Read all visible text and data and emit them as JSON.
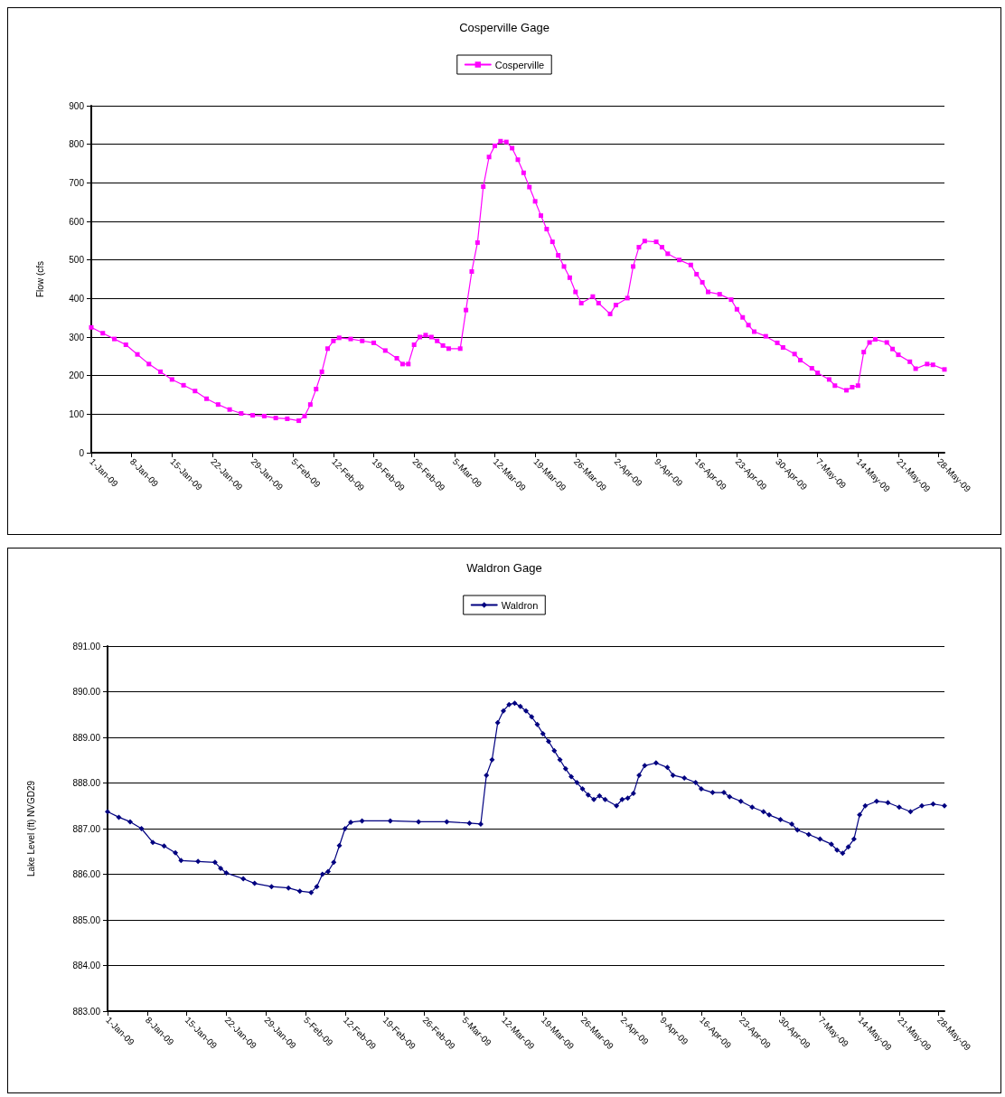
{
  "chart_data": [
    {
      "type": "line",
      "title": "Cosperville Gage",
      "ylabel": "Flow (cfs",
      "legend": "top",
      "grid": "y",
      "marker": "square",
      "line_style": "solid",
      "xlim": [
        "--01-01",
        "--05-29"
      ],
      "ylim": [
        0,
        900
      ],
      "yticks": [
        0,
        100,
        200,
        300,
        400,
        500,
        600,
        700,
        800,
        900
      ],
      "xticks": [
        {
          "value": "--01-01",
          "label": "1-Jan-09"
        },
        {
          "value": "--01-08",
          "label": "8-Jan-09"
        },
        {
          "value": "--01-15",
          "label": "15-Jan-09"
        },
        {
          "value": "--01-22",
          "label": "22-Jan-09"
        },
        {
          "value": "--01-29",
          "label": "29-Jan-09"
        },
        {
          "value": "--02-05",
          "label": "5-Feb-09"
        },
        {
          "value": "--02-12",
          "label": "12-Feb-09"
        },
        {
          "value": "--02-19",
          "label": "19-Feb-09"
        },
        {
          "value": "--02-26",
          "label": "26-Feb-09"
        },
        {
          "value": "--03-05",
          "label": "5-Mar-09"
        },
        {
          "value": "--03-12",
          "label": "12-Mar-09"
        },
        {
          "value": "--03-19",
          "label": "19-Mar-09"
        },
        {
          "value": "--03-26",
          "label": "26-Mar-09"
        },
        {
          "value": "--04-02",
          "label": "2-Apr-09"
        },
        {
          "value": "--04-09",
          "label": "9-Apr-09"
        },
        {
          "value": "--04-16",
          "label": "16-Apr-09"
        },
        {
          "value": "--04-23",
          "label": "23-Apr-09"
        },
        {
          "value": "--04-30",
          "label": "30-Apr-09"
        },
        {
          "value": "--05-07",
          "label": "7-May-09"
        },
        {
          "value": "--05-14",
          "label": "14-May-09"
        },
        {
          "value": "--05-21",
          "label": "21-May-09"
        },
        {
          "value": "--05-28",
          "label": "28-May-09"
        }
      ],
      "x": [
        "--01-01",
        "--01-03",
        "--01-05",
        "--01-07",
        "--01-09",
        "--01-11",
        "--01-13",
        "--01-15",
        "--01-17",
        "--01-19",
        "--01-21",
        "--01-23",
        "--01-25",
        "--01-27",
        "--01-29",
        "--01-31",
        "--02-02",
        "--02-04",
        "--02-06",
        "--02-07",
        "--02-08",
        "--02-09",
        "--02-10",
        "--02-11",
        "--02-12",
        "--02-13",
        "--02-15",
        "--02-17",
        "--02-19",
        "--02-21",
        "--02-23",
        "--02-24",
        "--02-25",
        "--02-26",
        "--02-27",
        "--02-28",
        "--03-01",
        "--03-02",
        "--03-03",
        "--03-04",
        "--03-06",
        "--03-07",
        "--03-08",
        "--03-09",
        "--03-10",
        "--03-11",
        "--03-12",
        "--03-13",
        "--03-14",
        "--03-15",
        "--03-16",
        "--03-17",
        "--03-18",
        "--03-19",
        "--03-20",
        "--03-21",
        "--03-22",
        "--03-23",
        "--03-24",
        "--03-25",
        "--03-26",
        "--03-27",
        "--03-29",
        "--03-30",
        "--04-01",
        "--04-02",
        "--04-04",
        "--04-05",
        "--04-06",
        "--04-07",
        "--04-09",
        "--04-10",
        "--04-11",
        "--04-13",
        "--04-15",
        "--04-16",
        "--04-17",
        "--04-18",
        "--04-20",
        "--04-22",
        "--04-23",
        "--04-24",
        "--04-25",
        "--04-26",
        "--04-28",
        "--04-30",
        "--05-01",
        "--05-03",
        "--05-04",
        "--05-06",
        "--05-07",
        "--05-09",
        "--05-10",
        "--05-12",
        "--05-13",
        "--05-14",
        "--05-15",
        "--05-16",
        "--05-17",
        "--05-19",
        "--05-20",
        "--05-21",
        "--05-23",
        "--05-24",
        "--05-26",
        "--05-27",
        "--05-29"
      ],
      "series": [
        {
          "name": "Cosperville",
          "color": "#ff00ff",
          "values": [
            325,
            310,
            295,
            280,
            255,
            230,
            210,
            190,
            175,
            160,
            140,
            125,
            112,
            102,
            97,
            95,
            90,
            88,
            83,
            95,
            125,
            165,
            210,
            270,
            290,
            298,
            295,
            290,
            285,
            265,
            245,
            230,
            230,
            280,
            300,
            305,
            300,
            290,
            278,
            270,
            270,
            370,
            470,
            545,
            690,
            767,
            796,
            808,
            806,
            790,
            760,
            726,
            689,
            652,
            615,
            580,
            547,
            512,
            483,
            454,
            417,
            388,
            405,
            388,
            360,
            383,
            401,
            483,
            533,
            549,
            547,
            533,
            516,
            500,
            487,
            463,
            442,
            417,
            411,
            397,
            372,
            351,
            331,
            314,
            302,
            285,
            273,
            256,
            240,
            219,
            207,
            190,
            174,
            162,
            170,
            174,
            261,
            286,
            294,
            286,
            269,
            254,
            236,
            218,
            230,
            228,
            216
          ]
        }
      ]
    },
    {
      "type": "line",
      "title": "Waldron Gage",
      "ylabel": "Lake Level (ft) NVGD29",
      "legend": "top",
      "grid": "y",
      "marker": "diamond",
      "line_style": "solid",
      "xlim": [
        "--01-01",
        "--05-29"
      ],
      "ylim": [
        883,
        891
      ],
      "yticks": [
        {
          "value": 883,
          "label": "883.00"
        },
        {
          "value": 884,
          "label": "884.00"
        },
        {
          "value": 885,
          "label": "885.00"
        },
        {
          "value": 886,
          "label": "886.00"
        },
        {
          "value": 887,
          "label": "887.00"
        },
        {
          "value": 888,
          "label": "888.00"
        },
        {
          "value": 889,
          "label": "889.00"
        },
        {
          "value": 890,
          "label": "890.00"
        },
        {
          "value": 891,
          "label": "891.00"
        }
      ],
      "xticks": [
        {
          "value": "--01-01",
          "label": "1-Jan-09"
        },
        {
          "value": "--01-08",
          "label": "8-Jan-09"
        },
        {
          "value": "--01-15",
          "label": "15-Jan-09"
        },
        {
          "value": "--01-22",
          "label": "22-Jan-09"
        },
        {
          "value": "--01-29",
          "label": "29-Jan-09"
        },
        {
          "value": "--02-05",
          "label": "5-Feb-09"
        },
        {
          "value": "--02-12",
          "label": "12-Feb-09"
        },
        {
          "value": "--02-19",
          "label": "19-Feb-09"
        },
        {
          "value": "--02-26",
          "label": "26-Feb-09"
        },
        {
          "value": "--03-05",
          "label": "5-Mar-09"
        },
        {
          "value": "--03-12",
          "label": "12-Mar-09"
        },
        {
          "value": "--03-19",
          "label": "19-Mar-09"
        },
        {
          "value": "--03-26",
          "label": "26-Mar-09"
        },
        {
          "value": "--04-02",
          "label": "2-Apr-09"
        },
        {
          "value": "--04-09",
          "label": "9-Apr-09"
        },
        {
          "value": "--04-16",
          "label": "16-Apr-09"
        },
        {
          "value": "--04-23",
          "label": "23-Apr-09"
        },
        {
          "value": "--04-30",
          "label": "30-Apr-09"
        },
        {
          "value": "--05-07",
          "label": "7-May-09"
        },
        {
          "value": "--05-14",
          "label": "14-May-09"
        },
        {
          "value": "--05-21",
          "label": "21-May-09"
        },
        {
          "value": "--05-28",
          "label": "28-May-09"
        }
      ],
      "x": [
        "--01-01",
        "--01-03",
        "--01-05",
        "--01-07",
        "--01-09",
        "--01-11",
        "--01-13",
        "--01-14",
        "--01-17",
        "--01-20",
        "--01-21",
        "--01-22",
        "--01-25",
        "--01-27",
        "--01-30",
        "--02-02",
        "--02-04",
        "--02-06",
        "--02-07",
        "--02-08",
        "--02-09",
        "--02-10",
        "--02-11",
        "--02-12",
        "--02-13",
        "--02-15",
        "--02-20",
        "--02-25",
        "--03-02",
        "--03-06",
        "--03-08",
        "--03-09",
        "--03-10",
        "--03-11",
        "--03-12",
        "--03-13",
        "--03-14",
        "--03-15",
        "--03-16",
        "--03-17",
        "--03-18",
        "--03-19",
        "--03-20",
        "--03-21",
        "--03-22",
        "--03-23",
        "--03-24",
        "--03-25",
        "--03-26",
        "--03-27",
        "--03-28",
        "--03-29",
        "--03-30",
        "--04-01",
        "--04-02",
        "--04-03",
        "--04-04",
        "--04-05",
        "--04-06",
        "--04-08",
        "--04-10",
        "--04-11",
        "--04-13",
        "--04-15",
        "--04-16",
        "--04-18",
        "--04-20",
        "--04-21",
        "--04-23",
        "--04-25",
        "--04-27",
        "--04-28",
        "--04-30",
        "--05-02",
        "--05-03",
        "--05-05",
        "--05-07",
        "--05-09",
        "--05-10",
        "--05-11",
        "--05-12",
        "--05-13",
        "--05-14",
        "--05-15",
        "--05-17",
        "--05-19",
        "--05-21",
        "--05-23",
        "--05-25",
        "--05-27",
        "--05-29"
      ],
      "series": [
        {
          "name": "Waldron",
          "color": "#000080",
          "values": [
            887.37,
            887.25,
            887.15,
            887.0,
            886.7,
            886.62,
            886.47,
            886.3,
            886.28,
            886.26,
            886.13,
            886.03,
            885.9,
            885.8,
            885.73,
            885.7,
            885.63,
            885.6,
            885.73,
            886.0,
            886.06,
            886.26,
            886.63,
            887.0,
            887.14,
            887.17,
            887.17,
            887.15,
            887.15,
            887.12,
            887.1,
            888.17,
            888.51,
            889.32,
            889.58,
            889.72,
            889.75,
            889.68,
            889.58,
            889.45,
            889.28,
            889.08,
            888.91,
            888.71,
            888.51,
            888.31,
            888.14,
            888.01,
            887.87,
            887.74,
            887.64,
            887.72,
            887.64,
            887.5,
            887.64,
            887.67,
            887.77,
            888.17,
            888.38,
            888.44,
            888.34,
            888.17,
            888.11,
            888.01,
            887.87,
            887.79,
            887.79,
            887.7,
            887.6,
            887.47,
            887.37,
            887.3,
            887.2,
            887.1,
            886.97,
            886.87,
            886.77,
            886.66,
            886.53,
            886.46,
            886.6,
            886.77,
            887.3,
            887.5,
            887.6,
            887.57,
            887.47,
            887.37,
            887.5,
            887.54,
            887.5
          ]
        }
      ]
    }
  ]
}
